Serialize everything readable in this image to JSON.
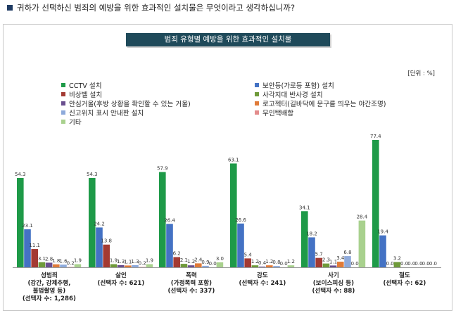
{
  "question": "귀하가 선택하신 범죄의 예방을 위한 효과적인 설치물은 무엇이라고 생각하십니까?",
  "chart_data": {
    "type": "bar",
    "title": "범죄 유형별 예방을 위한 효과적인 설치물",
    "unit": "[단위 : %]",
    "categories": [
      [
        "성범죄",
        "(강간, 강제추행,",
        "불법촬영 등)",
        "(선택자 수: 1,286)"
      ],
      [
        "살인",
        "(선택자 수: 621)"
      ],
      [
        "폭력",
        "(가정폭력 포함)",
        "(선택자 수: 337)"
      ],
      [
        "강도",
        "(선택자 수: 241)"
      ],
      [
        "사기",
        "(보이스피싱 등)",
        "(선택자 수: 88)"
      ],
      [
        "절도",
        "(선택자 수: 62)"
      ]
    ],
    "ylim": [
      0,
      80
    ],
    "series": [
      {
        "name": "CCTV 설치",
        "color": "#1e9a48",
        "values": [
          54.3,
          54.3,
          57.9,
          63.1,
          34.1,
          77.4
        ]
      },
      {
        "name": "보안등(가로등 포함) 설치",
        "color": "#4472c4",
        "values": [
          23.1,
          24.2,
          26.4,
          26.6,
          18.2,
          19.4
        ]
      },
      {
        "name": "비상벨 설치",
        "color": "#a33a33",
        "values": [
          11.1,
          13.8,
          6.2,
          5.4,
          5.7,
          0.0
        ]
      },
      {
        "name": "사각지대 반사경 설치",
        "color": "#6f9a3a",
        "values": [
          3.1,
          1.9,
          2.1,
          1.2,
          2.3,
          3.2
        ]
      },
      {
        "name": "안심거울(후방 상황을 확인할 수 있는 거울)",
        "color": "#6a4f8f",
        "values": [
          2.8,
          1.3,
          1.2,
          0.4,
          1.1,
          0.0
        ]
      },
      {
        "name": "로고젝터(길바닥에 문구를 띄우는 야간조명)",
        "color": "#e07b39",
        "values": [
          1.8,
          1.1,
          2.4,
          1.2,
          3.4,
          0.0
        ]
      },
      {
        "name": "신고위치 표시 안내판 설치",
        "color": "#8eaadb",
        "values": [
          1.6,
          1.3,
          0.9,
          0.8,
          6.8,
          0.0
        ]
      },
      {
        "name": "무인택배함",
        "color": "#e38c8c",
        "values": [
          0.2,
          0.2,
          0.0,
          0.0,
          0.0,
          0.0
        ]
      },
      {
        "name": "기타",
        "color": "#a9d18e",
        "values": [
          1.9,
          1.9,
          3.0,
          1.2,
          28.4,
          0.0
        ]
      }
    ]
  }
}
